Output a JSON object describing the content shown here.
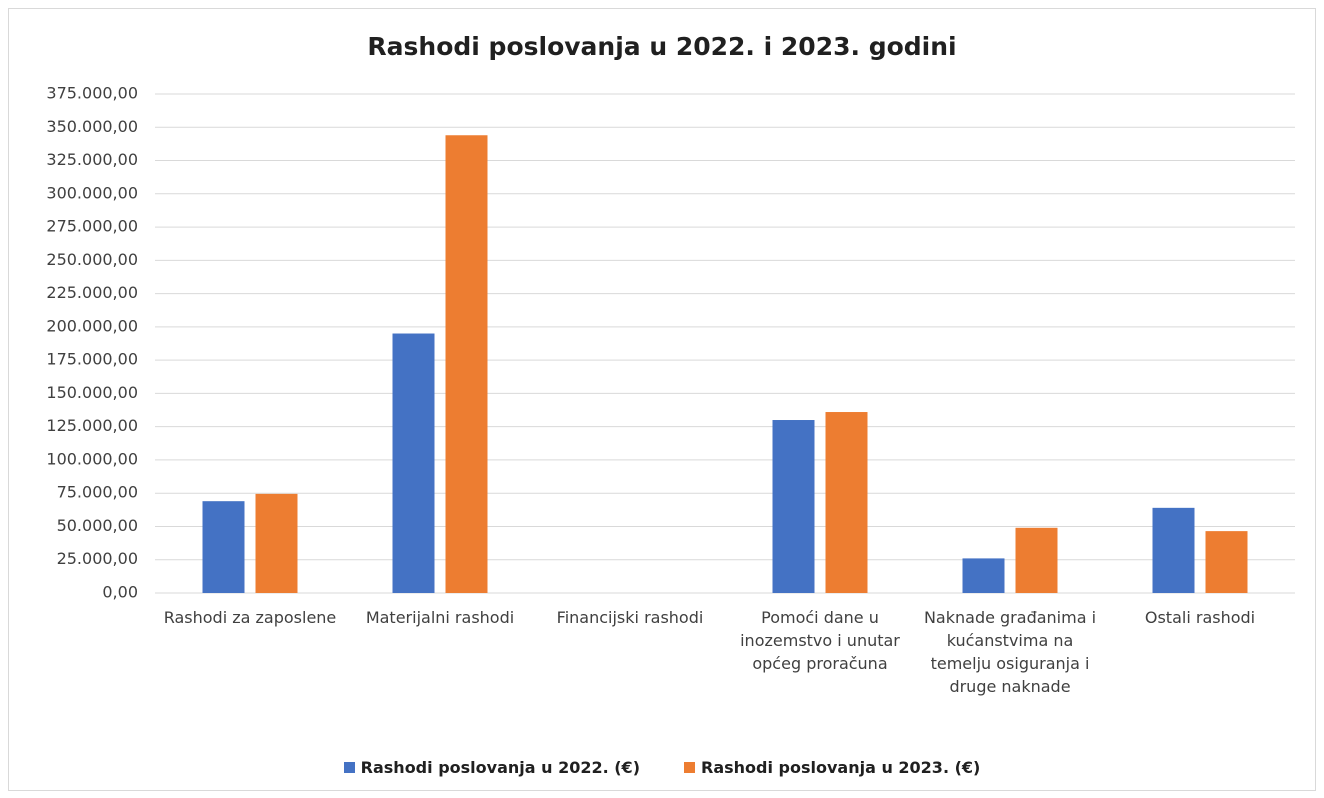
{
  "chart_data": {
    "type": "bar",
    "title": "Rashodi poslovanja u 2022. i 2023. godini",
    "categories": [
      "Rashodi za zaposlene",
      "Materijalni rashodi",
      "Financijski rashodi",
      "Pomoći dane u inozemstvo i unutar općeg proračuna",
      "Naknade građanima i kućanstvima na temelju osiguranja i druge naknade",
      "Ostali rashodi"
    ],
    "series": [
      {
        "name": "Rashodi poslovanja u 2022. (€)",
        "color": "#4472c4",
        "values": [
          69000,
          195000,
          0,
          130000,
          26000,
          64000
        ]
      },
      {
        "name": "Rashodi poslovanja u 2023. (€)",
        "color": "#ed7d31",
        "values": [
          74500,
          344000,
          0,
          136000,
          49000,
          46500
        ]
      }
    ],
    "ylim": [
      0,
      375000
    ],
    "yticks": [
      {
        "value": 0,
        "label": "0,00"
      },
      {
        "value": 25000,
        "label": "25.000,00"
      },
      {
        "value": 50000,
        "label": "50.000,00"
      },
      {
        "value": 75000,
        "label": "75.000,00"
      },
      {
        "value": 100000,
        "label": "100.000,00"
      },
      {
        "value": 125000,
        "label": "125.000,00"
      },
      {
        "value": 150000,
        "label": "150.000,00"
      },
      {
        "value": 175000,
        "label": "175.000,00"
      },
      {
        "value": 200000,
        "label": "200.000,00"
      },
      {
        "value": 225000,
        "label": "225.000,00"
      },
      {
        "value": 250000,
        "label": "250.000,00"
      },
      {
        "value": 275000,
        "label": "275.000,00"
      },
      {
        "value": 300000,
        "label": "300.000,00"
      },
      {
        "value": 325000,
        "label": "325.000,00"
      },
      {
        "value": 350000,
        "label": "350.000,00"
      },
      {
        "value": 375000,
        "label": "375.000,00"
      }
    ],
    "grid": true,
    "legend": "bottom"
  }
}
